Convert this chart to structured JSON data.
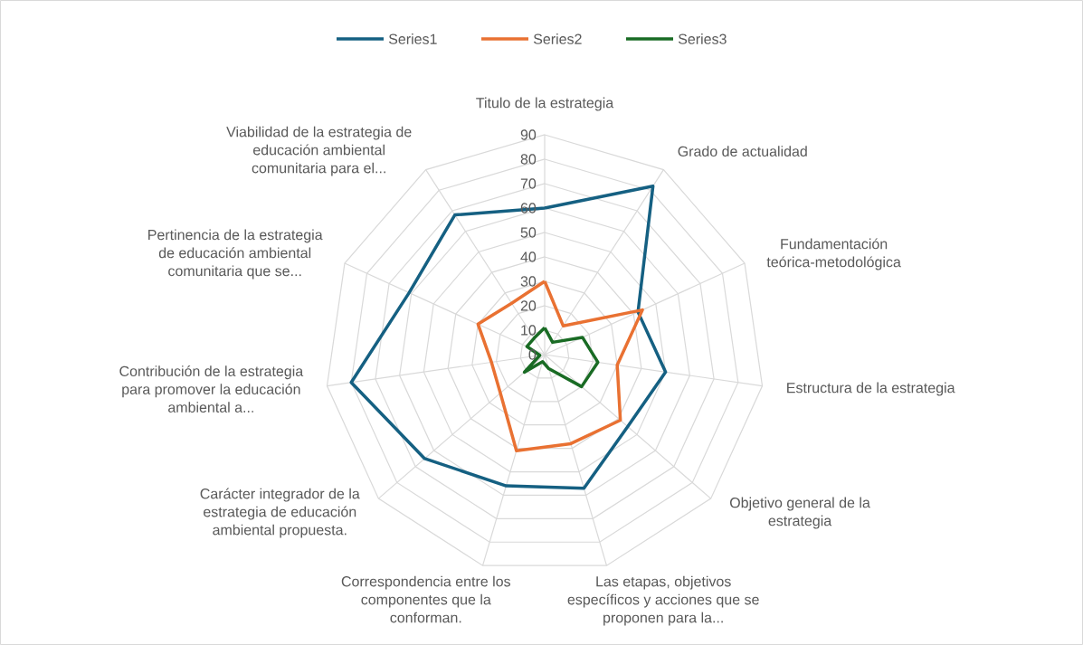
{
  "chart_data": {
    "type": "radar",
    "categories": [
      "Titulo de la estrategia",
      "Grado de actualidad",
      "Fundamentación teórica-metodológica",
      "Estructura de la estrategia",
      "Objetivo general de la estrategia",
      "Las etapas, objetivos específicos y acciones que se proponen para la...",
      "Correspondencia entre los componentes que la conforman.",
      "Carácter integrador de la estrategia de educación ambiental propuesta.",
      "Contribución de la estrategia para promover la educación ambiental a...",
      "Pertinencia de la estrategia de educación ambiental comunitaria que se...",
      "Viabilidad de la estrategia de educación ambiental comunitaria para el..."
    ],
    "series": [
      {
        "name": "Series1",
        "color": "#156082",
        "values": [
          60,
          82,
          42,
          50,
          45,
          57,
          56,
          65,
          80,
          61,
          68
        ]
      },
      {
        "name": "Series2",
        "color": "#e97132",
        "values": [
          30,
          14,
          44,
          30,
          41,
          38,
          41,
          24,
          22,
          30,
          25
        ]
      },
      {
        "name": "Series3",
        "color": "#196b24",
        "values": [
          11,
          6,
          17,
          22,
          20,
          6,
          3,
          11,
          2,
          8,
          8
        ]
      }
    ],
    "ylim": [
      0,
      90
    ],
    "yticks": [
      0,
      10,
      20,
      30,
      40,
      50,
      60,
      70,
      80,
      90
    ],
    "grid": true,
    "legend": "top"
  }
}
